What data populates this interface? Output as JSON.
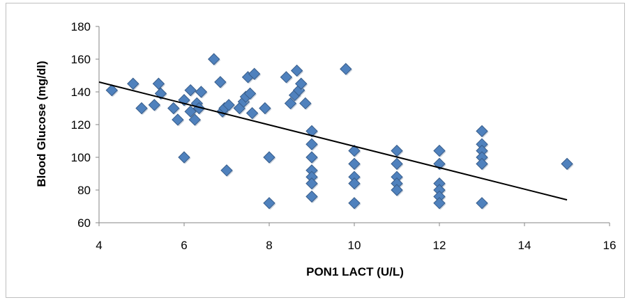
{
  "chart_data": {
    "type": "scatter",
    "title": "",
    "xlabel": "PON1 LACT (U/L)",
    "ylabel": "Blood Glucose (mg/dl)",
    "xlim": [
      4,
      16
    ],
    "ylim": [
      60,
      180
    ],
    "xticks": [
      4,
      6,
      8,
      10,
      12,
      14,
      16
    ],
    "yticks": [
      60,
      80,
      100,
      120,
      140,
      160,
      180
    ],
    "x_tick_labels": [
      "4",
      "6",
      "8",
      "10",
      "12",
      "14",
      "16"
    ],
    "y_tick_labels": [
      "60",
      "80",
      "100",
      "120",
      "140",
      "160",
      "180"
    ],
    "grid": false,
    "legend": "none",
    "marker": "diamond",
    "marker_color": "#4f81bd",
    "marker_edge_color": "#385d8a",
    "trendline": {
      "type": "linear",
      "color": "#000000",
      "x": [
        4,
        15
      ],
      "y": [
        146,
        74
      ]
    },
    "points": [
      [
        4.3,
        141
      ],
      [
        4.8,
        145
      ],
      [
        5.0,
        130
      ],
      [
        5.3,
        132
      ],
      [
        5.4,
        145
      ],
      [
        5.45,
        139
      ],
      [
        5.75,
        130
      ],
      [
        5.85,
        123
      ],
      [
        6.0,
        100
      ],
      [
        6.0,
        135
      ],
      [
        6.15,
        141
      ],
      [
        6.15,
        128
      ],
      [
        6.25,
        123
      ],
      [
        6.3,
        133
      ],
      [
        6.35,
        130
      ],
      [
        6.4,
        140
      ],
      [
        6.7,
        160
      ],
      [
        6.85,
        146
      ],
      [
        6.9,
        128
      ],
      [
        6.95,
        130
      ],
      [
        7.0,
        92
      ],
      [
        7.05,
        132
      ],
      [
        7.3,
        130
      ],
      [
        7.4,
        134
      ],
      [
        7.45,
        137
      ],
      [
        7.5,
        149
      ],
      [
        7.55,
        139
      ],
      [
        7.6,
        127
      ],
      [
        7.65,
        151
      ],
      [
        7.9,
        130
      ],
      [
        8.0,
        100
      ],
      [
        8.0,
        72
      ],
      [
        8.4,
        149
      ],
      [
        8.5,
        133
      ],
      [
        8.6,
        138
      ],
      [
        8.65,
        153
      ],
      [
        8.7,
        141
      ],
      [
        8.75,
        145
      ],
      [
        8.85,
        133
      ],
      [
        9.0,
        116
      ],
      [
        9.0,
        108
      ],
      [
        9.0,
        100
      ],
      [
        9.0,
        92
      ],
      [
        9.0,
        88
      ],
      [
        9.0,
        84
      ],
      [
        9.0,
        76
      ],
      [
        9.8,
        154
      ],
      [
        10.0,
        104
      ],
      [
        10.0,
        96
      ],
      [
        10.0,
        88
      ],
      [
        10.0,
        84
      ],
      [
        10.0,
        72
      ],
      [
        11.0,
        104
      ],
      [
        11.0,
        96
      ],
      [
        11.0,
        88
      ],
      [
        11.0,
        84
      ],
      [
        11.0,
        80
      ],
      [
        12.0,
        104
      ],
      [
        12.0,
        96
      ],
      [
        12.0,
        84
      ],
      [
        12.0,
        80
      ],
      [
        12.0,
        76
      ],
      [
        12.0,
        72
      ],
      [
        13.0,
        116
      ],
      [
        13.0,
        108
      ],
      [
        13.0,
        104
      ],
      [
        13.0,
        100
      ],
      [
        13.0,
        96
      ],
      [
        13.0,
        72
      ],
      [
        15.0,
        96
      ]
    ]
  }
}
